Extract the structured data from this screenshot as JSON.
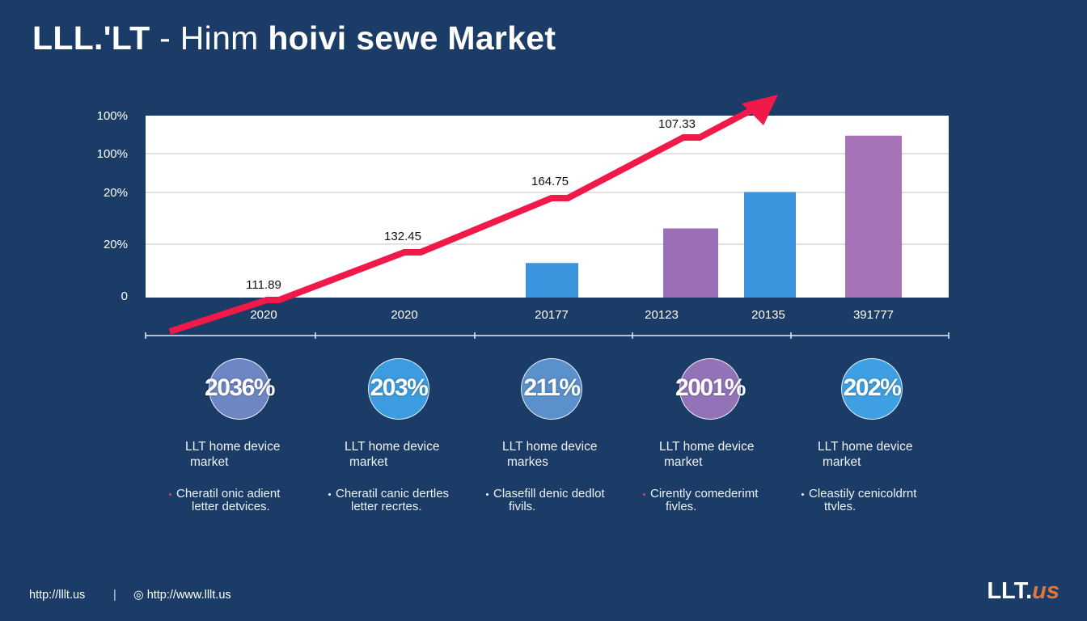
{
  "title": {
    "part1": "LLL.'LT",
    "part2": " - Hinm ",
    "part3": "hoivi sewe Market"
  },
  "chart_data": {
    "type": "bar+line",
    "y_tick_labels": [
      "100%",
      "100%",
      "20%",
      "20%",
      "0"
    ],
    "x_tick_labels": [
      "2020",
      "2020",
      "20177",
      "20123",
      "20135",
      "391777"
    ],
    "bars": [
      {
        "category": "20177",
        "value": 19,
        "color": "#3a95de"
      },
      {
        "category": "20123",
        "value": 38,
        "color": "#9a6fb5"
      },
      {
        "category": "20135",
        "value": 58,
        "color": "#3a95de"
      },
      {
        "category": "391777",
        "value": 89,
        "color": "#a572b6"
      }
    ],
    "line": {
      "color": "#f0194a",
      "data_labels": [
        "111.89",
        "132.45",
        "164.75",
        "107.33"
      ]
    },
    "grid": true
  },
  "cards": [
    {
      "pct": "2036%",
      "color": "#6f86c4",
      "label1": "LLT home device",
      "label2": "market",
      "bullet_color": "#e0406a",
      "b1": "Cheratil onic adient",
      "b2": "letter detvices."
    },
    {
      "pct": "203%",
      "color": "#3d9be0",
      "label1": "LLT home device",
      "label2": "market",
      "bullet_color": "#ffffff",
      "b1": "Cheratil canic dertles",
      "b2": "letter recrtes."
    },
    {
      "pct": "211%",
      "color": "#5a90cc",
      "label1": "LLT home device",
      "label2": "markes",
      "bullet_color": "#ffffff",
      "b1": "Clasefill denic dedlot",
      "b2": "fivils."
    },
    {
      "pct": "2001%",
      "color": "#9373b8",
      "label1": "LLT home device",
      "label2": "market",
      "bullet_color": "#e0406a",
      "b1": "Cirently comederimt",
      "b2": "fivles."
    },
    {
      "pct": "202%",
      "color": "#3ea0e2",
      "label1": "LLT home device",
      "label2": "market",
      "bullet_color": "#ffffff",
      "b1": "Cleastily cenicoldrnt",
      "b2": "ttvles."
    }
  ],
  "footer": {
    "link1": "http://lllt.us",
    "divider": "|",
    "link2": "http://www.lllt.us",
    "icon": "copyright-icon"
  },
  "logo": {
    "main": "LLT.",
    "accent": "us",
    "accent_color": "#e0773a"
  }
}
